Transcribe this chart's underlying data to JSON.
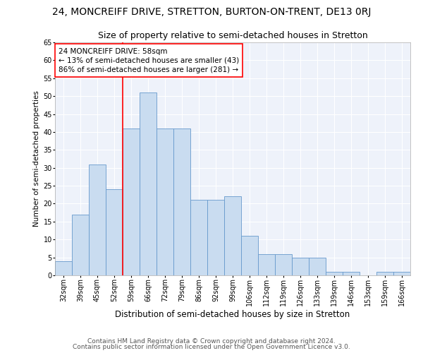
{
  "title": "24, MONCREIFF DRIVE, STRETTON, BURTON-ON-TRENT, DE13 0RJ",
  "subtitle": "Size of property relative to semi-detached houses in Stretton",
  "xlabel": "Distribution of semi-detached houses by size in Stretton",
  "ylabel": "Number of semi-detached properties",
  "categories": [
    "32sqm",
    "39sqm",
    "45sqm",
    "52sqm",
    "59sqm",
    "66sqm",
    "72sqm",
    "79sqm",
    "86sqm",
    "92sqm",
    "99sqm",
    "106sqm",
    "112sqm",
    "119sqm",
    "126sqm",
    "133sqm",
    "139sqm",
    "146sqm",
    "153sqm",
    "159sqm",
    "166sqm"
  ],
  "values": [
    4,
    17,
    31,
    24,
    41,
    51,
    41,
    41,
    21,
    21,
    22,
    11,
    6,
    6,
    5,
    5,
    1,
    1,
    0,
    1,
    1
  ],
  "bar_color": "#c9dcf0",
  "bar_edge_color": "#6699cc",
  "highlight_index": 4,
  "annotation_text": "24 MONCREIFF DRIVE: 58sqm\n← 13% of semi-detached houses are smaller (43)\n86% of semi-detached houses are larger (281) →",
  "annotation_box_color": "white",
  "annotation_box_edge": "red",
  "vline_color": "red",
  "ylim": [
    0,
    65
  ],
  "yticks": [
    0,
    5,
    10,
    15,
    20,
    25,
    30,
    35,
    40,
    45,
    50,
    55,
    60,
    65
  ],
  "footer_line1": "Contains HM Land Registry data © Crown copyright and database right 2024.",
  "footer_line2": "Contains public sector information licensed under the Open Government Licence v3.0.",
  "bg_color": "#eef2fa",
  "title_fontsize": 10,
  "subtitle_fontsize": 9,
  "xlabel_fontsize": 8.5,
  "ylabel_fontsize": 7.5,
  "tick_fontsize": 7,
  "annotation_fontsize": 7.5,
  "footer_fontsize": 6.5
}
